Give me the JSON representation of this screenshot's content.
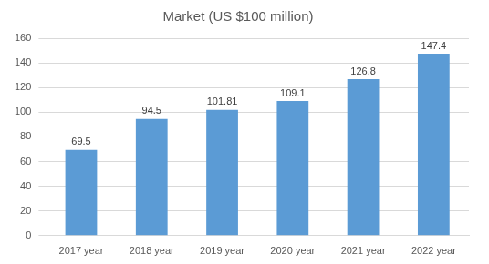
{
  "chart_data": {
    "type": "bar",
    "title": "Market (US $100 million)",
    "categories": [
      "2017 year",
      "2018 year",
      "2019 year",
      "2020 year",
      "2021 year",
      "2022 year"
    ],
    "values": [
      69.5,
      94.5,
      101.81,
      109.1,
      126.8,
      147.4
    ],
    "color": "#5b9bd5",
    "ylim": [
      0,
      160
    ],
    "yticks": [
      0,
      20,
      40,
      60,
      80,
      100,
      120,
      140,
      160
    ],
    "grid": true,
    "data_labels": true
  }
}
